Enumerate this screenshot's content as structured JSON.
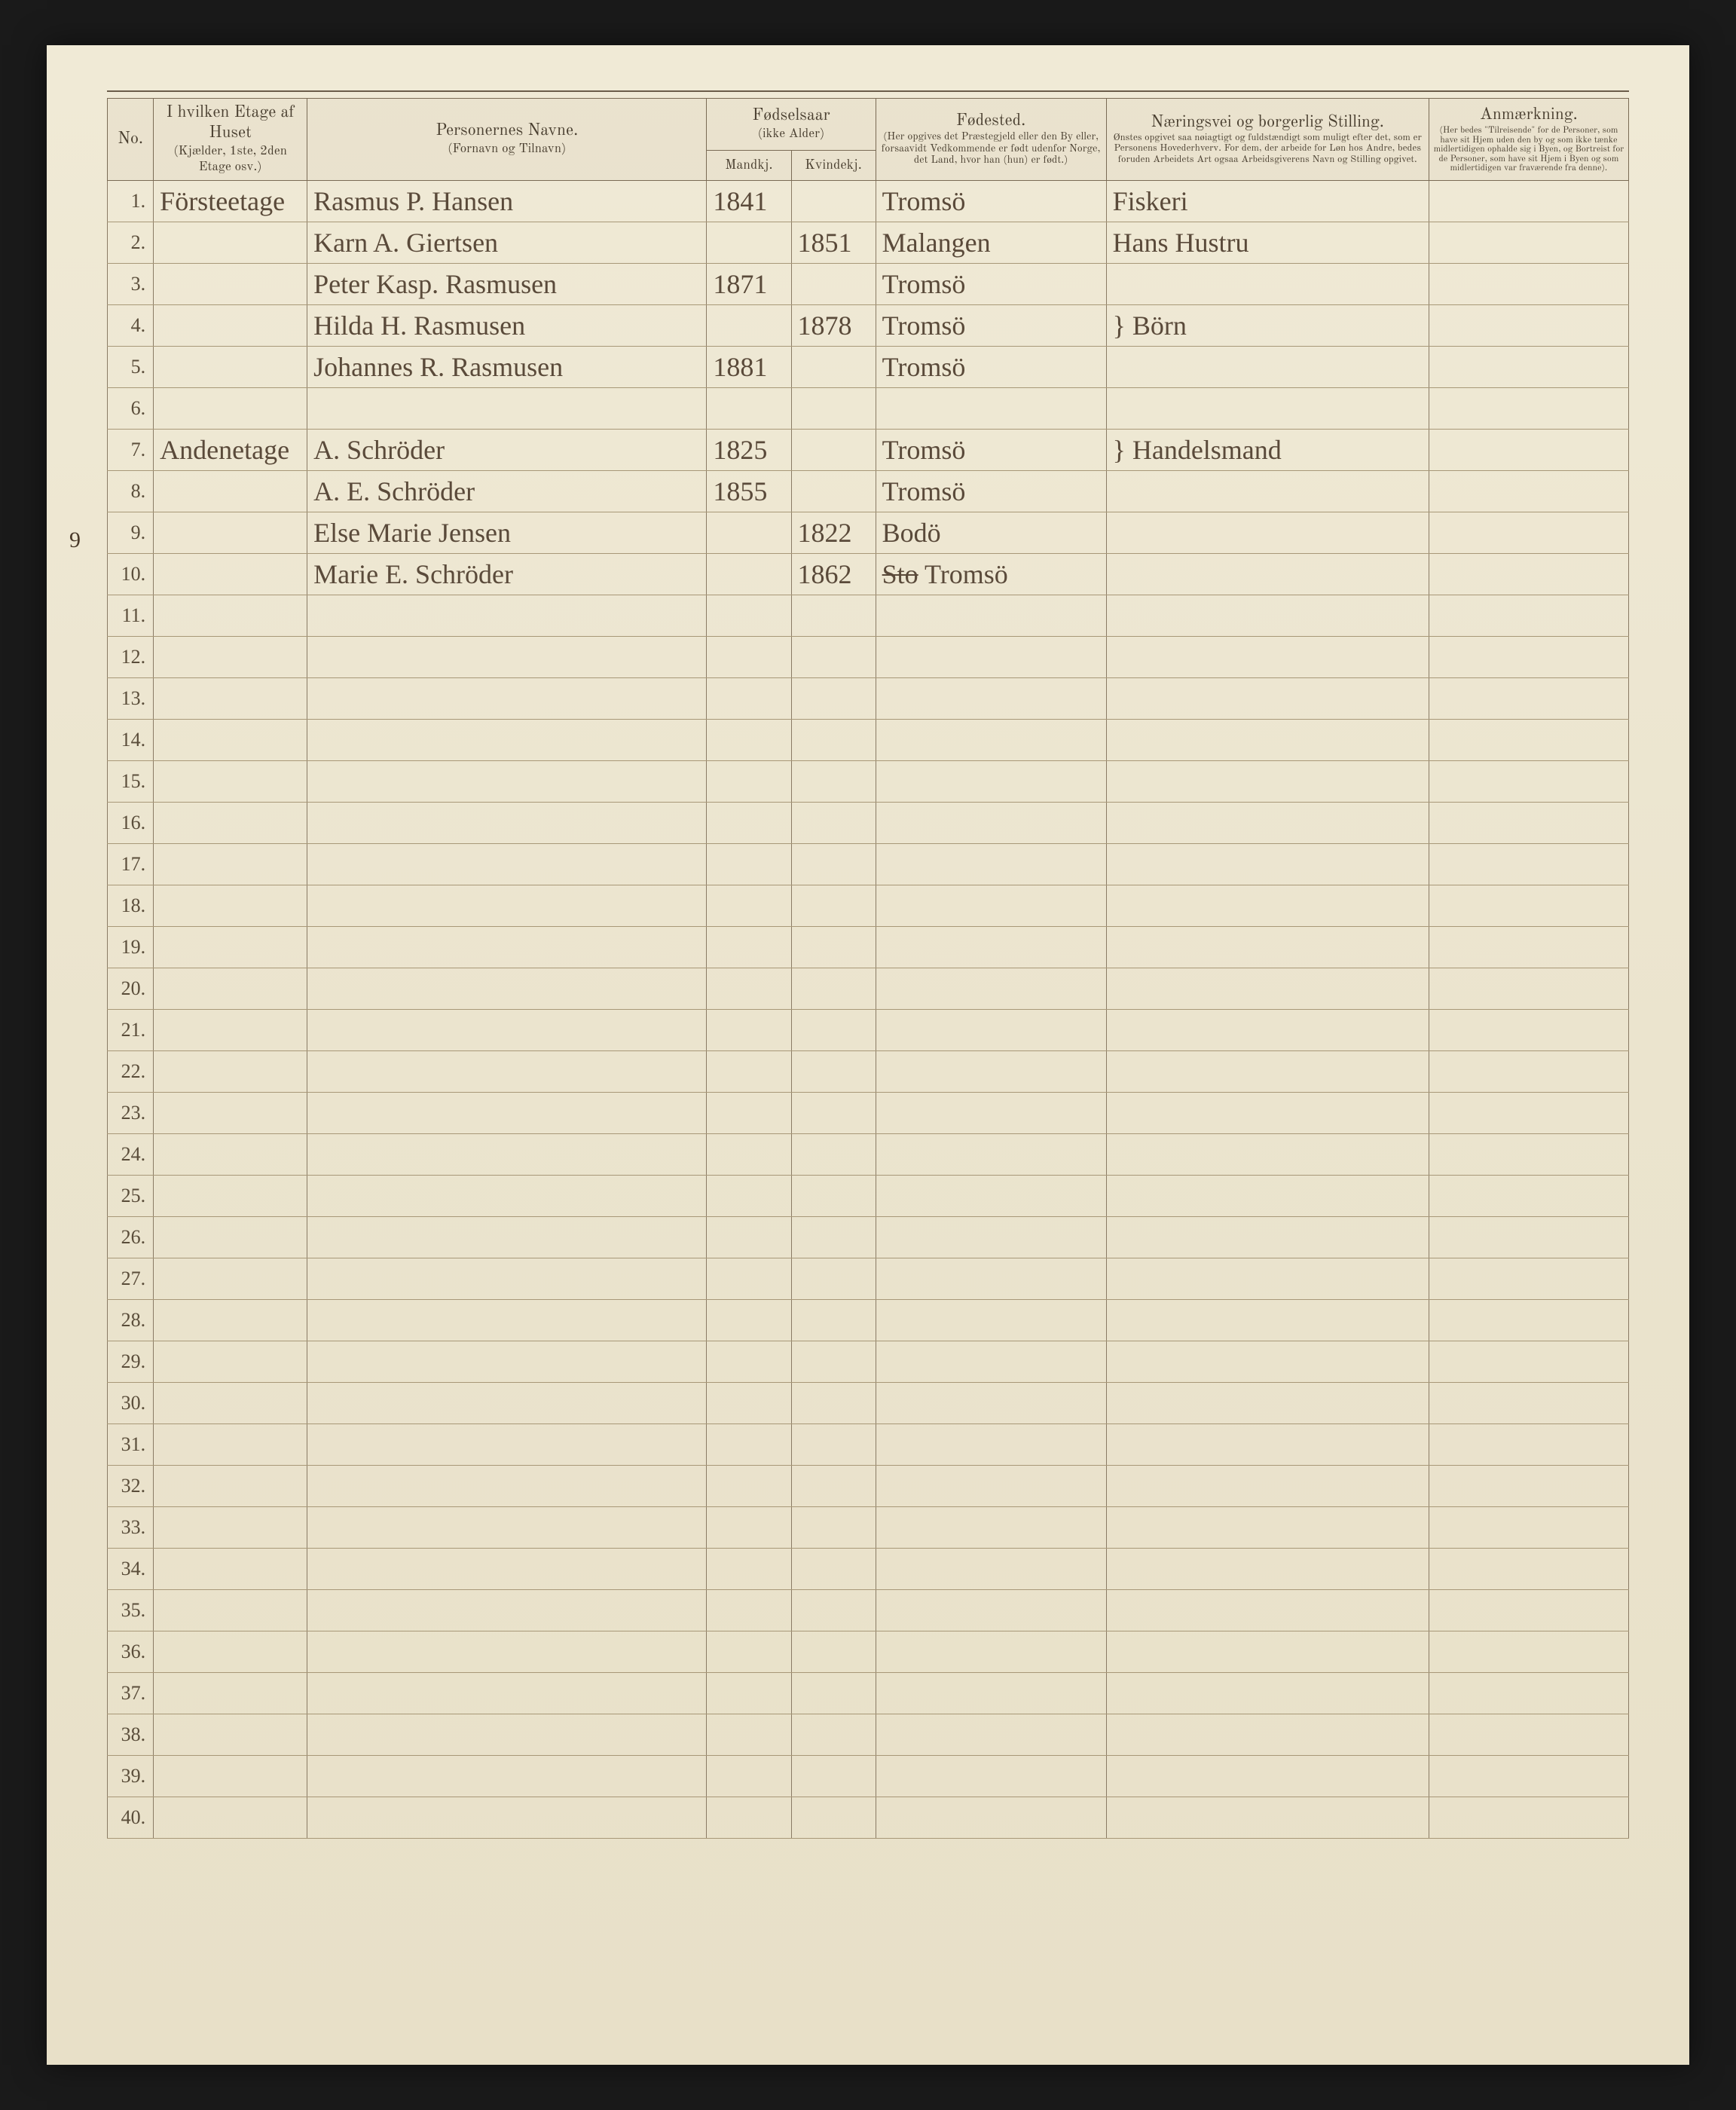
{
  "headers": {
    "no": "No.",
    "etage": "I hvilken Etage af Huset",
    "etage_sub": "(Kjælder, 1ste, 2den Etage osv.)",
    "navn": "Personernes Navne.",
    "navn_sub": "(Fornavn og Tilnavn)",
    "fodselsaar": "Fødselsaar",
    "fodselsaar_sub": "(ikke Alder)",
    "mandk": "Mandkj.",
    "kvindek": "Kvindekj.",
    "fodested": "Fødested.",
    "fodested_sub": "(Her opgives det Præstegjeld eller den By eller, forsaavidt Vedkommende er født udenfor Norge, det Land, hvor han (hun) er født.)",
    "stilling": "Næringsvei og borgerlig Stilling.",
    "stilling_sub": "Ønstes opgivet saa nøiagtigt og fuldstændigt som muligt efter det, som er Personens Hovederhverv. For dem, der arbeide for Løn hos Andre, bedes foruden Arbeidets Art ogsaa Arbeidsgiverens Navn og Stilling opgivet.",
    "anm": "Anmærkning.",
    "anm_sub": "(Her bedes \"Tilreisende\" for de Personer, som have sit Hjem uden den by og som ikke tænke midlertidigen ophalde sig i Byen, og Bortreist for de Personer, som have sit Hjem i Byen og som midlertidigen var fraværende fra denne)."
  },
  "margin_note": "9",
  "rows": [
    {
      "n": "1.",
      "etage": "Försteetage",
      "navn": "Rasmus P. Hansen",
      "m": "1841",
      "k": "",
      "sted": "Tromsö",
      "still": "Fiskeri"
    },
    {
      "n": "2.",
      "etage": "",
      "navn": "Karn A. Giertsen",
      "m": "",
      "k": "1851",
      "sted": "Malangen",
      "still": "Hans Hustru"
    },
    {
      "n": "3.",
      "etage": "",
      "navn": "Peter Kasp. Rasmusen",
      "m": "1871",
      "k": "",
      "sted": "Tromsö",
      "still": ""
    },
    {
      "n": "4.",
      "etage": "",
      "navn": "Hilda H. Rasmusen",
      "m": "",
      "k": "1878",
      "sted": "Tromsö",
      "still": "} Börn"
    },
    {
      "n": "5.",
      "etage": "",
      "navn": "Johannes R. Rasmusen",
      "m": "1881",
      "k": "",
      "sted": "Tromsö",
      "still": ""
    },
    {
      "n": "6.",
      "etage": "",
      "navn": "",
      "m": "",
      "k": "",
      "sted": "",
      "still": ""
    },
    {
      "n": "7.",
      "etage": "Andenetage",
      "navn": "A. Schröder",
      "m": "1825",
      "k": "",
      "sted": "Tromsö",
      "still": "} Handelsmand"
    },
    {
      "n": "8.",
      "etage": "",
      "navn": "A. E. Schröder",
      "m": "1855",
      "k": "",
      "sted": "Tromsö",
      "still": ""
    },
    {
      "n": "9.",
      "etage": "",
      "navn": "Else Marie Jensen",
      "m": "",
      "k": "1822",
      "sted": "Bodö",
      "still": ""
    },
    {
      "n": "10.",
      "etage": "",
      "navn": "Marie E. Schröder",
      "m": "",
      "k": "1862",
      "sted": "Tromsö",
      "still": "",
      "strike_sted_prefix": "Sto"
    },
    {
      "n": "11.",
      "etage": "",
      "navn": "",
      "m": "",
      "k": "",
      "sted": "",
      "still": ""
    },
    {
      "n": "12.",
      "etage": "",
      "navn": "",
      "m": "",
      "k": "",
      "sted": "",
      "still": ""
    },
    {
      "n": "13.",
      "etage": "",
      "navn": "",
      "m": "",
      "k": "",
      "sted": "",
      "still": ""
    },
    {
      "n": "14.",
      "etage": "",
      "navn": "",
      "m": "",
      "k": "",
      "sted": "",
      "still": ""
    },
    {
      "n": "15.",
      "etage": "",
      "navn": "",
      "m": "",
      "k": "",
      "sted": "",
      "still": ""
    },
    {
      "n": "16.",
      "etage": "",
      "navn": "",
      "m": "",
      "k": "",
      "sted": "",
      "still": ""
    },
    {
      "n": "17.",
      "etage": "",
      "navn": "",
      "m": "",
      "k": "",
      "sted": "",
      "still": ""
    },
    {
      "n": "18.",
      "etage": "",
      "navn": "",
      "m": "",
      "k": "",
      "sted": "",
      "still": ""
    },
    {
      "n": "19.",
      "etage": "",
      "navn": "",
      "m": "",
      "k": "",
      "sted": "",
      "still": ""
    },
    {
      "n": "20.",
      "etage": "",
      "navn": "",
      "m": "",
      "k": "",
      "sted": "",
      "still": ""
    },
    {
      "n": "21.",
      "etage": "",
      "navn": "",
      "m": "",
      "k": "",
      "sted": "",
      "still": ""
    },
    {
      "n": "22.",
      "etage": "",
      "navn": "",
      "m": "",
      "k": "",
      "sted": "",
      "still": ""
    },
    {
      "n": "23.",
      "etage": "",
      "navn": "",
      "m": "",
      "k": "",
      "sted": "",
      "still": ""
    },
    {
      "n": "24.",
      "etage": "",
      "navn": "",
      "m": "",
      "k": "",
      "sted": "",
      "still": ""
    },
    {
      "n": "25.",
      "etage": "",
      "navn": "",
      "m": "",
      "k": "",
      "sted": "",
      "still": ""
    },
    {
      "n": "26.",
      "etage": "",
      "navn": "",
      "m": "",
      "k": "",
      "sted": "",
      "still": ""
    },
    {
      "n": "27.",
      "etage": "",
      "navn": "",
      "m": "",
      "k": "",
      "sted": "",
      "still": ""
    },
    {
      "n": "28.",
      "etage": "",
      "navn": "",
      "m": "",
      "k": "",
      "sted": "",
      "still": ""
    },
    {
      "n": "29.",
      "etage": "",
      "navn": "",
      "m": "",
      "k": "",
      "sted": "",
      "still": ""
    },
    {
      "n": "30.",
      "etage": "",
      "navn": "",
      "m": "",
      "k": "",
      "sted": "",
      "still": ""
    },
    {
      "n": "31.",
      "etage": "",
      "navn": "",
      "m": "",
      "k": "",
      "sted": "",
      "still": ""
    },
    {
      "n": "32.",
      "etage": "",
      "navn": "",
      "m": "",
      "k": "",
      "sted": "",
      "still": ""
    },
    {
      "n": "33.",
      "etage": "",
      "navn": "",
      "m": "",
      "k": "",
      "sted": "",
      "still": ""
    },
    {
      "n": "34.",
      "etage": "",
      "navn": "",
      "m": "",
      "k": "",
      "sted": "",
      "still": ""
    },
    {
      "n": "35.",
      "etage": "",
      "navn": "",
      "m": "",
      "k": "",
      "sted": "",
      "still": ""
    },
    {
      "n": "36.",
      "etage": "",
      "navn": "",
      "m": "",
      "k": "",
      "sted": "",
      "still": ""
    },
    {
      "n": "37.",
      "etage": "",
      "navn": "",
      "m": "",
      "k": "",
      "sted": "",
      "still": ""
    },
    {
      "n": "38.",
      "etage": "",
      "navn": "",
      "m": "",
      "k": "",
      "sted": "",
      "still": ""
    },
    {
      "n": "39.",
      "etage": "",
      "navn": "",
      "m": "",
      "k": "",
      "sted": "",
      "still": ""
    },
    {
      "n": "40.",
      "etage": "",
      "navn": "",
      "m": "",
      "k": "",
      "sted": "",
      "still": ""
    }
  ]
}
